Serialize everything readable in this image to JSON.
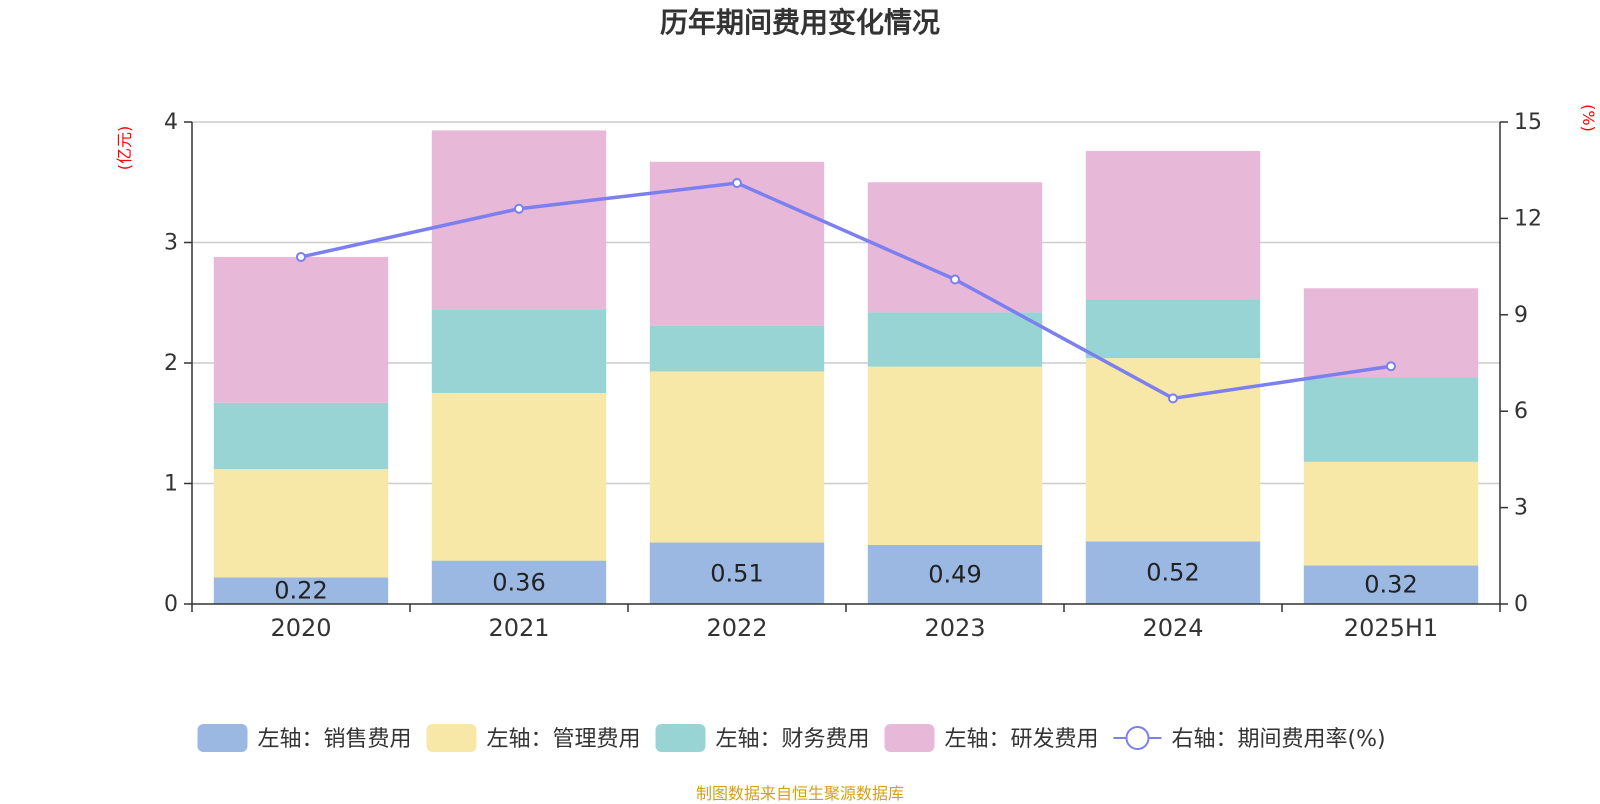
{
  "chart_data": {
    "type": "bar",
    "stacked": true,
    "title": "历年期间费用变化情况",
    "categories": [
      "2020",
      "2021",
      "2022",
      "2023",
      "2024",
      "2025H1"
    ],
    "left_axis": {
      "unit": "(亿元)",
      "ylim": [
        0,
        4
      ],
      "ticks": [
        "0",
        "1",
        "2",
        "3",
        "4"
      ]
    },
    "right_axis": {
      "unit": "(%)",
      "ylim": [
        0,
        15
      ],
      "ticks": [
        "0",
        "3",
        "6",
        "9",
        "12",
        "15"
      ]
    },
    "grid": true,
    "legend_position": "bottom",
    "series": [
      {
        "name": "左轴：销售费用",
        "axis": "left",
        "type": "bar",
        "color": "#9bb8e2",
        "values": [
          0.22,
          0.36,
          0.51,
          0.49,
          0.52,
          0.32
        ],
        "labels": [
          "0.22",
          "0.36",
          "0.51",
          "0.49",
          "0.52",
          "0.32"
        ]
      },
      {
        "name": "左轴：管理费用",
        "axis": "left",
        "type": "bar",
        "color": "#f7e8a7",
        "values": [
          0.9,
          1.39,
          1.42,
          1.48,
          1.52,
          0.86
        ]
      },
      {
        "name": "左轴：财务费用",
        "axis": "left",
        "type": "bar",
        "color": "#98d4d4",
        "values": [
          0.55,
          0.69,
          0.38,
          0.45,
          0.49,
          0.7
        ]
      },
      {
        "name": "左轴：研发费用",
        "axis": "left",
        "type": "bar",
        "color": "#e8b8d8",
        "values": [
          1.21,
          1.49,
          1.36,
          1.08,
          1.23,
          0.74
        ]
      },
      {
        "name": "右轴：期间费用率(%)",
        "axis": "right",
        "type": "line",
        "color": "#7b7ff0",
        "values": [
          10.8,
          12.3,
          13.1,
          10.1,
          6.4,
          7.4
        ]
      }
    ]
  },
  "footer": {
    "source_note": "制图数据来自恒生聚源数据库"
  }
}
